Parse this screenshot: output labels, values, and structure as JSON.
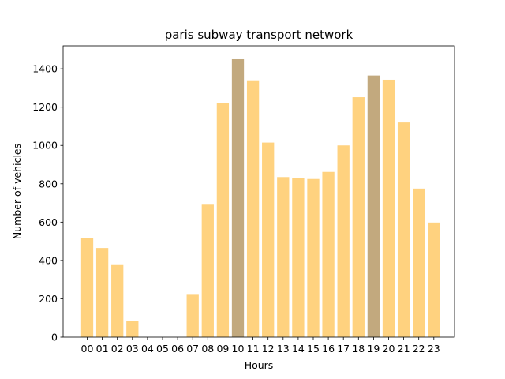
{
  "chart_data": {
    "type": "bar",
    "title": "paris subway transport network",
    "xlabel": "Hours",
    "ylabel": "Number of vehicles",
    "categories": [
      "00",
      "01",
      "02",
      "03",
      "04",
      "05",
      "06",
      "07",
      "08",
      "09",
      "10",
      "11",
      "12",
      "13",
      "14",
      "15",
      "16",
      "17",
      "18",
      "19",
      "20",
      "21",
      "22",
      "23"
    ],
    "values": [
      515,
      465,
      380,
      85,
      0,
      0,
      0,
      225,
      695,
      1220,
      1450,
      1340,
      1015,
      835,
      828,
      825,
      862,
      1000,
      1252,
      1365,
      1343,
      1120,
      775,
      598
    ],
    "highlighted": [
      "10",
      "19"
    ],
    "ylim": [
      0,
      1520
    ],
    "yticks": [
      0,
      200,
      400,
      600,
      800,
      1000,
      1200,
      1400
    ],
    "grid": false,
    "legend": "none",
    "colors": {
      "bar": "#ffd27f",
      "highlight": "#c2a97e",
      "axis": "#000000"
    }
  }
}
